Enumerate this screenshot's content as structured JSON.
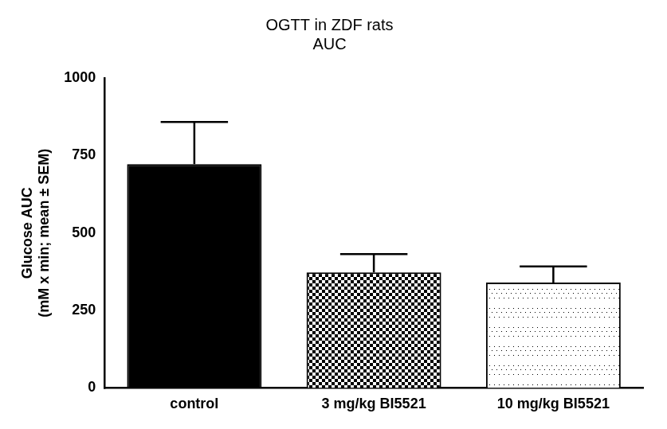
{
  "chart_data": {
    "type": "bar",
    "title": [
      "OGTT in ZDF rats",
      "AUC"
    ],
    "y_label": [
      "Glucose AUC",
      "(mM x min; mean ± SEM)"
    ],
    "categories": [
      "control",
      "3 mg/kg BI5521",
      "10 mg/kg BI5521"
    ],
    "values": [
      722,
      373,
      340
    ],
    "errors": [
      136,
      59,
      52
    ],
    "colors": [
      "#000000",
      "#000000",
      "#000000"
    ],
    "ylim": [
      0,
      1000
    ],
    "yticks": [
      0,
      250,
      500,
      750,
      1000
    ],
    "grid": false
  }
}
